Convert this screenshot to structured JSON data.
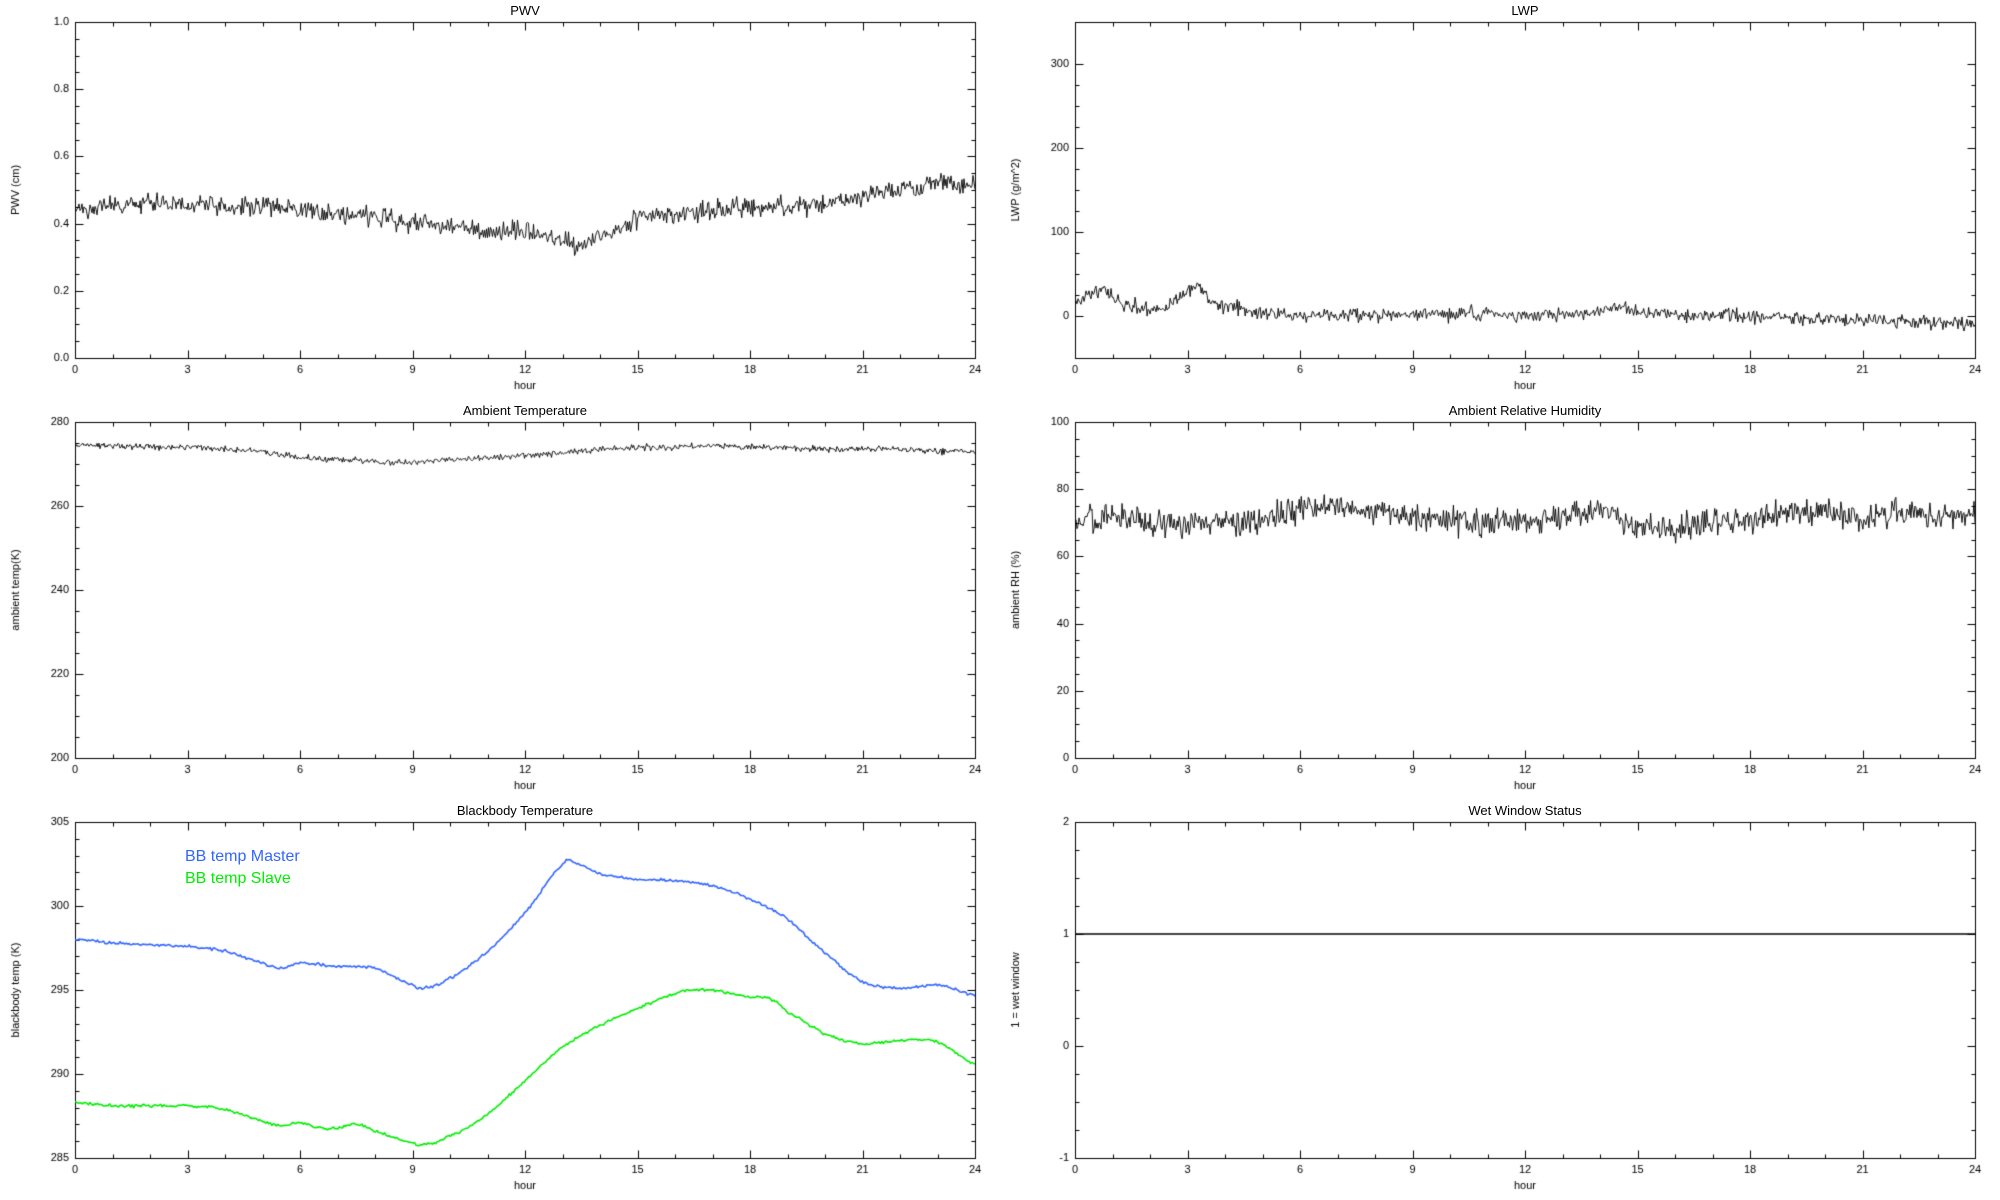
{
  "page": {
    "background": "#ffffff",
    "axis_color": "#000000"
  },
  "chart_data": [
    {
      "id": "pwv",
      "type": "line",
      "title": "PWV",
      "xlabel": "hour",
      "ylabel": "PWV (cm)",
      "xlim": [
        0,
        24
      ],
      "ylim": [
        0.0,
        1.0
      ],
      "xticks": [
        0,
        3,
        6,
        9,
        12,
        15,
        18,
        21,
        24
      ],
      "xtick_labels": [
        "0",
        "3",
        "6",
        "9",
        "12",
        "15",
        "18",
        "21",
        "24"
      ],
      "xminor": 3,
      "yticks": [
        0.0,
        0.2,
        0.4,
        0.6,
        0.8,
        1.0
      ],
      "ytick_labels": [
        "0.0",
        "0.2",
        "0.4",
        "0.6",
        "0.8",
        "1.0"
      ],
      "yminor": 4,
      "grid": false,
      "series": [
        {
          "name": "PWV",
          "color": "#000000",
          "width": 0.9,
          "noise": 0.014,
          "points": 900,
          "smooth": false,
          "x": [
            0,
            1,
            2,
            3,
            4,
            5,
            6,
            7,
            8,
            9,
            10,
            11,
            12,
            13,
            13.5,
            14,
            14.5,
            15,
            16,
            17,
            18,
            19,
            20,
            21,
            22,
            23,
            24
          ],
          "y": [
            0.44,
            0.45,
            0.46,
            0.46,
            0.45,
            0.45,
            0.44,
            0.43,
            0.42,
            0.4,
            0.39,
            0.38,
            0.38,
            0.35,
            0.33,
            0.36,
            0.38,
            0.42,
            0.43,
            0.44,
            0.45,
            0.45,
            0.46,
            0.48,
            0.5,
            0.52,
            0.52
          ]
        }
      ]
    },
    {
      "id": "lwp",
      "type": "line",
      "title": "LWP",
      "xlabel": "hour",
      "ylabel": "LWP (g/m^2)",
      "xlim": [
        0,
        24
      ],
      "ylim": [
        -50,
        350
      ],
      "xticks": [
        0,
        3,
        6,
        9,
        12,
        15,
        18,
        21,
        24
      ],
      "xtick_labels": [
        "0",
        "3",
        "6",
        "9",
        "12",
        "15",
        "18",
        "21",
        "24"
      ],
      "xminor": 3,
      "yticks": [
        0,
        100,
        200,
        300
      ],
      "ytick_labels": [
        "0",
        "100",
        "200",
        "300"
      ],
      "yminor": 4,
      "grid": false,
      "series": [
        {
          "name": "LWP",
          "color": "#000000",
          "width": 0.9,
          "noise": 4,
          "points": 900,
          "smooth": false,
          "x": [
            0,
            0.3,
            0.7,
            1,
            1.5,
            2,
            2.5,
            3,
            3.3,
            3.7,
            4,
            4.5,
            5,
            6,
            7,
            8,
            9,
            10,
            11,
            12,
            13,
            14,
            14.5,
            15,
            16,
            17,
            18,
            19,
            20,
            21,
            22,
            23,
            24
          ],
          "y": [
            15,
            25,
            30,
            22,
            12,
            8,
            12,
            30,
            35,
            15,
            12,
            8,
            3,
            1,
            2,
            1,
            2,
            3,
            2,
            1,
            2,
            5,
            10,
            4,
            1,
            0,
            0,
            -2,
            -3,
            -4,
            -6,
            -8,
            -10
          ]
        }
      ]
    },
    {
      "id": "ambient-temperature",
      "type": "line",
      "title": "Ambient Temperature",
      "xlabel": "hour",
      "ylabel": "ambient temp(K)",
      "xlim": [
        0,
        24
      ],
      "ylim": [
        200,
        280
      ],
      "xticks": [
        0,
        3,
        6,
        9,
        12,
        15,
        18,
        21,
        24
      ],
      "xtick_labels": [
        "0",
        "3",
        "6",
        "9",
        "12",
        "15",
        "18",
        "21",
        "24"
      ],
      "xminor": 3,
      "yticks": [
        200,
        220,
        240,
        260,
        280
      ],
      "ytick_labels": [
        "200",
        "220",
        "240",
        "260",
        "280"
      ],
      "yminor": 4,
      "grid": false,
      "series": [
        {
          "name": "ambient temp",
          "color": "#000000",
          "width": 0.9,
          "noise": 0.35,
          "points": 900,
          "smooth": false,
          "x": [
            0,
            1,
            2,
            3,
            4,
            5,
            6,
            7,
            8,
            9,
            10,
            11,
            12,
            13,
            14,
            15,
            16,
            17,
            18,
            19,
            20,
            21,
            22,
            23,
            24
          ],
          "y": [
            274.5,
            274.5,
            274,
            274,
            273.5,
            273,
            271.5,
            271,
            270.5,
            270.5,
            271,
            271.5,
            272,
            272.5,
            273.5,
            274,
            274,
            274.5,
            274,
            274,
            273.5,
            273.5,
            273.5,
            273,
            273
          ]
        }
      ]
    },
    {
      "id": "ambient-relative-humidity",
      "type": "line",
      "title": "Ambient Relative Humidity",
      "xlabel": "hour",
      "ylabel": "ambient RH (%)",
      "xlim": [
        0,
        24
      ],
      "ylim": [
        0,
        100
      ],
      "xticks": [
        0,
        3,
        6,
        9,
        12,
        15,
        18,
        21,
        24
      ],
      "xtick_labels": [
        "0",
        "3",
        "6",
        "9",
        "12",
        "15",
        "18",
        "21",
        "24"
      ],
      "xminor": 3,
      "yticks": [
        0,
        20,
        40,
        60,
        80,
        100
      ],
      "ytick_labels": [
        "0",
        "20",
        "40",
        "60",
        "80",
        "100"
      ],
      "yminor": 4,
      "grid": false,
      "series": [
        {
          "name": "ambient RH",
          "color": "#000000",
          "width": 0.9,
          "noise": 2.0,
          "points": 900,
          "smooth": false,
          "x": [
            0,
            1,
            2,
            3,
            4,
            5,
            6,
            7,
            8,
            9,
            10,
            11,
            12,
            13,
            14,
            15,
            16,
            17,
            18,
            19,
            20,
            21,
            22,
            23,
            24
          ],
          "y": [
            70,
            72,
            70,
            69,
            70,
            71,
            74,
            75,
            73,
            72,
            71,
            70,
            70,
            72,
            74,
            69,
            68,
            70,
            71,
            73,
            74,
            71,
            73,
            72,
            72
          ]
        }
      ]
    },
    {
      "id": "blackbody-temperature",
      "type": "line",
      "title": "Blackbody Temperature",
      "xlabel": "hour",
      "ylabel": "blackbody temp (K)",
      "xlim": [
        0,
        24
      ],
      "ylim": [
        285,
        305
      ],
      "xticks": [
        0,
        3,
        6,
        9,
        12,
        15,
        18,
        21,
        24
      ],
      "xtick_labels": [
        "0",
        "3",
        "6",
        "9",
        "12",
        "15",
        "18",
        "21",
        "24"
      ],
      "xminor": 3,
      "yticks": [
        285,
        290,
        295,
        300,
        305
      ],
      "ytick_labels": [
        "285",
        "290",
        "295",
        "300",
        "305"
      ],
      "yminor": 5,
      "grid": false,
      "legend_pos": "top-left",
      "legend": [
        {
          "label": "BB temp Master",
          "color": "#3366ff"
        },
        {
          "label": "BB temp Slave",
          "color": "#00ee00"
        }
      ],
      "series": [
        {
          "name": "BB temp Master",
          "color": "#3366ff",
          "width": 1.6,
          "noise": 0.04,
          "points": 600,
          "smooth": true,
          "x": [
            0,
            1,
            2,
            3,
            4,
            5,
            5.5,
            6,
            7,
            8,
            9,
            9.3,
            10,
            11,
            12,
            13,
            13.3,
            14,
            15,
            16,
            17,
            18,
            19,
            20,
            21,
            22,
            23,
            24
          ],
          "y": [
            298,
            297.8,
            297.7,
            297.6,
            297.3,
            296.6,
            296.3,
            296.6,
            296.4,
            296.3,
            295.3,
            295.1,
            295.7,
            297.3,
            299.6,
            302.4,
            302.6,
            301.9,
            301.6,
            301.5,
            301.2,
            300.4,
            299.2,
            297.2,
            295.5,
            295.1,
            295.3,
            294.7
          ]
        },
        {
          "name": "BB temp Slave",
          "color": "#00ee00",
          "width": 1.6,
          "noise": 0.04,
          "points": 600,
          "smooth": true,
          "x": [
            0,
            1,
            2,
            3,
            4,
            5,
            5.5,
            6,
            6.5,
            7,
            7.5,
            8,
            9,
            9.3,
            10,
            11,
            12,
            13,
            14,
            15,
            16,
            16.5,
            17,
            18,
            18.5,
            19,
            20,
            21,
            21.5,
            22,
            23,
            24
          ],
          "y": [
            288.3,
            288.1,
            288.1,
            288.1,
            287.9,
            287.2,
            286.9,
            287.1,
            286.8,
            286.8,
            287.0,
            286.6,
            285.9,
            285.8,
            286.3,
            287.6,
            289.6,
            291.6,
            292.9,
            293.9,
            294.8,
            295.0,
            295.0,
            294.6,
            294.5,
            293.7,
            292.4,
            291.8,
            291.9,
            292.0,
            291.9,
            290.6
          ]
        }
      ]
    },
    {
      "id": "wet-window-status",
      "type": "line",
      "title": "Wet Window Status",
      "xlabel": "hour",
      "ylabel": "1 = wet window",
      "xlim": [
        0,
        24
      ],
      "ylim": [
        -1,
        2
      ],
      "xticks": [
        0,
        3,
        6,
        9,
        12,
        15,
        18,
        21,
        24
      ],
      "xtick_labels": [
        "0",
        "3",
        "6",
        "9",
        "12",
        "15",
        "18",
        "21",
        "24"
      ],
      "xminor": 3,
      "yticks": [
        -1,
        0,
        1,
        2
      ],
      "ytick_labels": [
        "-1",
        "0",
        "1",
        "2"
      ],
      "yminor": 4,
      "grid": false,
      "series": [
        {
          "name": "wet window",
          "color": "#000000",
          "width": 1.4,
          "noise": 0,
          "points": 2,
          "smooth": false,
          "x": [
            0,
            24
          ],
          "y": [
            1,
            1
          ]
        }
      ]
    }
  ]
}
